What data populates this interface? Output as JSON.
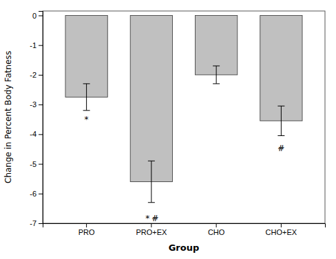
{
  "chart_data": {
    "type": "bar",
    "categories": [
      "PRO",
      "PRO+EX",
      "CHO",
      "CHO+EX"
    ],
    "values": [
      -2.75,
      -5.6,
      -2.0,
      -3.55
    ],
    "errors": [
      0.45,
      0.7,
      0.3,
      0.5
    ],
    "color": "#c0c0c0",
    "xlabel": "Group",
    "ylabel": "Change in Percent Body Fatness",
    "ylim": [
      -7,
      0.15
    ],
    "yticks": [
      0,
      -1,
      -2,
      -3,
      -4,
      -5,
      -6,
      -7
    ],
    "annotations": [
      {
        "text": "*",
        "x": "PRO",
        "y": -3.38
      },
      {
        "text": "*",
        "x": "PRO+EX",
        "y": -6.72
      },
      {
        "text": "#",
        "x": "PRO+EX",
        "y": -6.72
      },
      {
        "text": "#",
        "x": "CHO+EX",
        "y": -4.35
      }
    ],
    "grid": false
  }
}
